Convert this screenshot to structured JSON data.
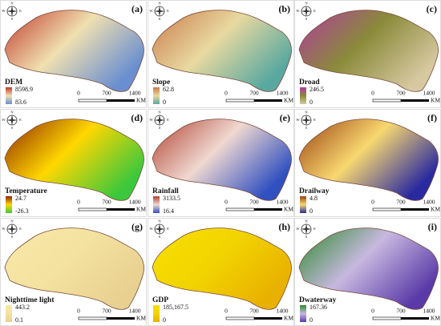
{
  "compass": [
    "N",
    "S",
    "W",
    "E"
  ],
  "scale_bar": {
    "ticks": [
      "0",
      "700",
      "1400"
    ],
    "unit": "KM"
  },
  "panels": [
    {
      "letter": "(a)",
      "name": "DEM",
      "max": "8598.9",
      "min": "83.6",
      "colors": [
        "#c0392b",
        "#f0e0b0",
        "#6a8fd0"
      ]
    },
    {
      "letter": "(b)",
      "name": "Slope",
      "max": "62.8",
      "min": "0",
      "colors": [
        "#c97a4a",
        "#e8d9a0",
        "#58a8a0"
      ]
    },
    {
      "letter": "(c)",
      "name": "Droad",
      "max": "246.5",
      "min": "0",
      "colors": [
        "#b03aa0",
        "#8a8a3a",
        "#d6c8a0"
      ]
    },
    {
      "letter": "(d)",
      "name": "Temperature",
      "max": "24.7",
      "min": "-26.3",
      "colors": [
        "#8b2500",
        "#ffd700",
        "#3cc83c"
      ]
    },
    {
      "letter": "(e)",
      "name": "Rainfall",
      "max": "3133.5",
      "min": "16.4",
      "colors": [
        "#b04030",
        "#f0d8d0",
        "#3050c0"
      ]
    },
    {
      "letter": "(f)",
      "name": "Drailway",
      "max": "4.8",
      "min": "0",
      "colors": [
        "#9a4010",
        "#f8d870",
        "#2a2aa0"
      ]
    },
    {
      "letter": "(g)",
      "name": "Nighttime light",
      "max": "443.2",
      "min": "0.1",
      "colors": [
        "#f8e8a8",
        "#f4e2a0",
        "#e8d090"
      ]
    },
    {
      "letter": "(h)",
      "name": "GDP",
      "max": "185,167.5",
      "min": "0",
      "colors": [
        "#f6e000",
        "#f2d400",
        "#e8b000"
      ]
    },
    {
      "letter": "(i)",
      "name": "Dwaterway",
      "max": "167.36",
      "min": "0",
      "colors": [
        "#2a8a2a",
        "#c8b8e0",
        "#5a3aa8"
      ]
    }
  ]
}
